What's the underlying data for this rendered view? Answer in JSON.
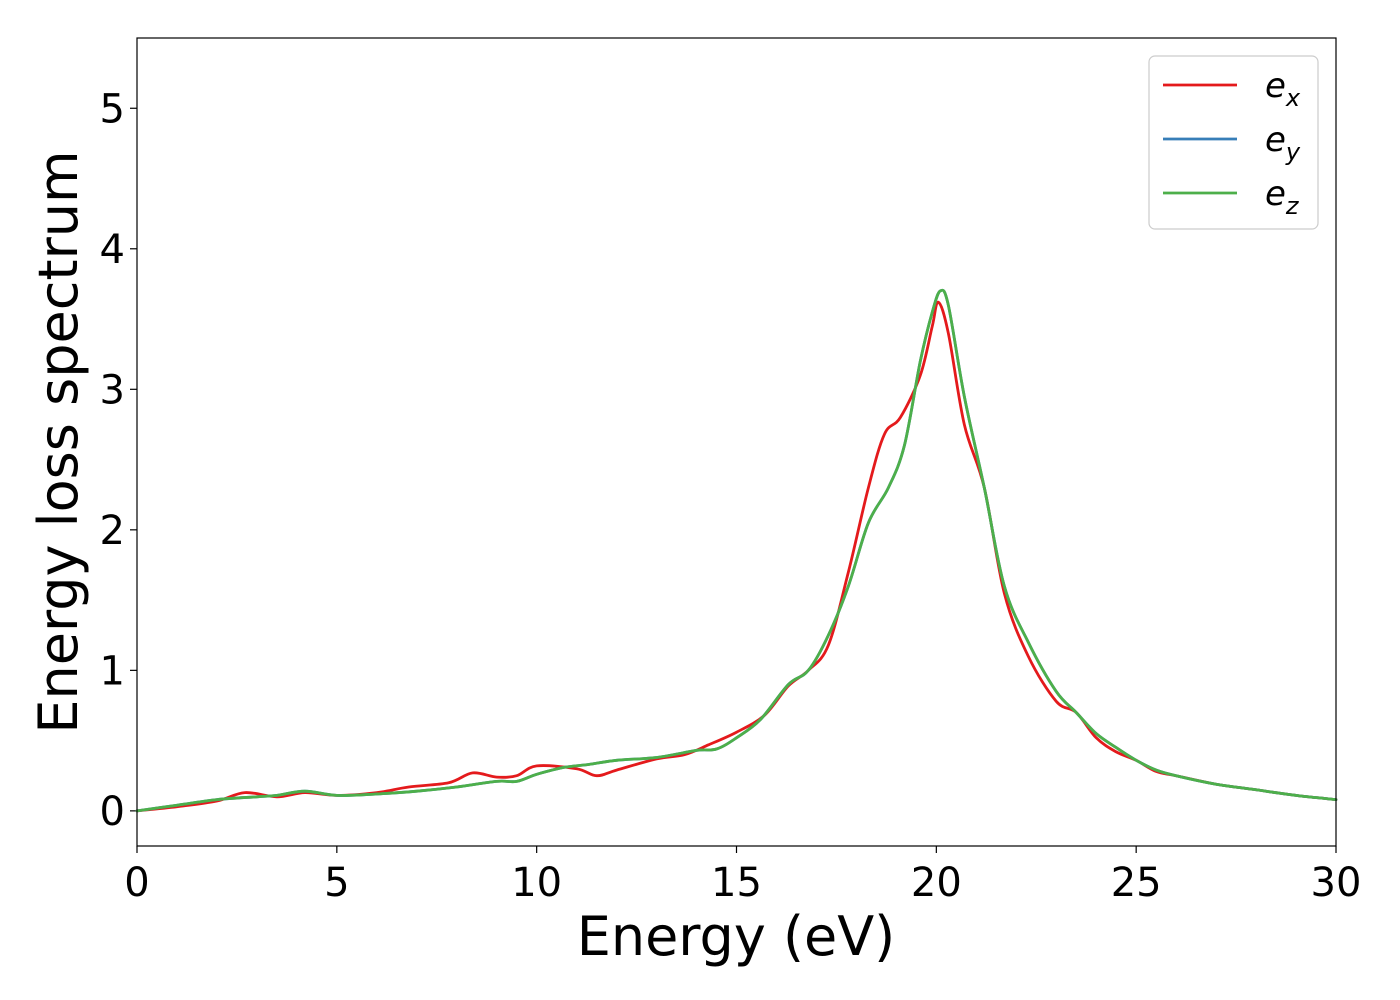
{
  "chart_data": {
    "type": "line",
    "xlabel": "Energy (eV)",
    "ylabel": "Energy loss spectrum",
    "xlim": [
      0,
      30
    ],
    "ylim": [
      -0.25,
      5.5
    ],
    "xticks": [
      0,
      5,
      10,
      15,
      20,
      25,
      30
    ],
    "yticks": [
      0,
      1,
      2,
      3,
      4,
      5
    ],
    "grid": false,
    "legend_position": "top-right",
    "series": [
      {
        "name": "e",
        "subscript": "x",
        "color": "#e41a1c",
        "points": [
          [
            0,
            0
          ],
          [
            1,
            0.03
          ],
          [
            2,
            0.07
          ],
          [
            2.7,
            0.13
          ],
          [
            3.5,
            0.1
          ],
          [
            4.2,
            0.13
          ],
          [
            5,
            0.11
          ],
          [
            6,
            0.13
          ],
          [
            6.8,
            0.17
          ],
          [
            7.8,
            0.2
          ],
          [
            8.4,
            0.27
          ],
          [
            9,
            0.24
          ],
          [
            9.5,
            0.25
          ],
          [
            10,
            0.32
          ],
          [
            11,
            0.3
          ],
          [
            11.5,
            0.25
          ],
          [
            12,
            0.29
          ],
          [
            13,
            0.37
          ],
          [
            13.7,
            0.4
          ],
          [
            14.3,
            0.47
          ],
          [
            15,
            0.56
          ],
          [
            15.7,
            0.68
          ],
          [
            16.3,
            0.89
          ],
          [
            16.8,
            1.0
          ],
          [
            17.3,
            1.18
          ],
          [
            17.8,
            1.7
          ],
          [
            18.3,
            2.3
          ],
          [
            18.7,
            2.68
          ],
          [
            19.1,
            2.8
          ],
          [
            19.6,
            3.1
          ],
          [
            19.9,
            3.45
          ],
          [
            20.05,
            3.62
          ],
          [
            20.3,
            3.4
          ],
          [
            20.7,
            2.75
          ],
          [
            21.2,
            2.3
          ],
          [
            21.7,
            1.55
          ],
          [
            22.3,
            1.1
          ],
          [
            23,
            0.78
          ],
          [
            23.5,
            0.7
          ],
          [
            24,
            0.52
          ],
          [
            24.5,
            0.42
          ],
          [
            25,
            0.36
          ],
          [
            25.5,
            0.28
          ],
          [
            26,
            0.25
          ],
          [
            27,
            0.19
          ],
          [
            28,
            0.15
          ],
          [
            29,
            0.11
          ],
          [
            30,
            0.08
          ]
        ]
      },
      {
        "name": "e",
        "subscript": "y",
        "color": "#377eb8",
        "points": [
          [
            0,
            0
          ],
          [
            1,
            0.04
          ],
          [
            2,
            0.08
          ],
          [
            3,
            0.1
          ],
          [
            3.5,
            0.11
          ],
          [
            4.2,
            0.14
          ],
          [
            5,
            0.11
          ],
          [
            6,
            0.12
          ],
          [
            7,
            0.14
          ],
          [
            8,
            0.17
          ],
          [
            9,
            0.21
          ],
          [
            9.5,
            0.21
          ],
          [
            10,
            0.26
          ],
          [
            10.7,
            0.31
          ],
          [
            11.3,
            0.33
          ],
          [
            12,
            0.36
          ],
          [
            13,
            0.38
          ],
          [
            14,
            0.43
          ],
          [
            14.5,
            0.44
          ],
          [
            15,
            0.52
          ],
          [
            15.6,
            0.65
          ],
          [
            16.3,
            0.9
          ],
          [
            16.8,
            1.0
          ],
          [
            17.3,
            1.25
          ],
          [
            17.8,
            1.6
          ],
          [
            18.3,
            2.05
          ],
          [
            18.8,
            2.3
          ],
          [
            19.2,
            2.6
          ],
          [
            19.6,
            3.2
          ],
          [
            19.9,
            3.55
          ],
          [
            20.1,
            3.7
          ],
          [
            20.3,
            3.6
          ],
          [
            20.7,
            2.95
          ],
          [
            21.2,
            2.3
          ],
          [
            21.7,
            1.6
          ],
          [
            22.3,
            1.2
          ],
          [
            23,
            0.85
          ],
          [
            23.5,
            0.7
          ],
          [
            24,
            0.55
          ],
          [
            24.5,
            0.45
          ],
          [
            25,
            0.36
          ],
          [
            25.5,
            0.29
          ],
          [
            26,
            0.25
          ],
          [
            27,
            0.19
          ],
          [
            28,
            0.15
          ],
          [
            29,
            0.11
          ],
          [
            30,
            0.08
          ]
        ]
      },
      {
        "name": "e",
        "subscript": "z",
        "color": "#4daf4a",
        "points": [
          [
            0,
            0
          ],
          [
            1,
            0.04
          ],
          [
            2,
            0.08
          ],
          [
            3,
            0.1
          ],
          [
            3.5,
            0.11
          ],
          [
            4.2,
            0.14
          ],
          [
            5,
            0.11
          ],
          [
            6,
            0.12
          ],
          [
            7,
            0.14
          ],
          [
            8,
            0.17
          ],
          [
            9,
            0.21
          ],
          [
            9.5,
            0.21
          ],
          [
            10,
            0.26
          ],
          [
            10.7,
            0.31
          ],
          [
            11.3,
            0.33
          ],
          [
            12,
            0.36
          ],
          [
            13,
            0.38
          ],
          [
            14,
            0.43
          ],
          [
            14.5,
            0.44
          ],
          [
            15,
            0.52
          ],
          [
            15.6,
            0.65
          ],
          [
            16.3,
            0.9
          ],
          [
            16.8,
            1.0
          ],
          [
            17.3,
            1.25
          ],
          [
            17.8,
            1.6
          ],
          [
            18.3,
            2.05
          ],
          [
            18.8,
            2.3
          ],
          [
            19.2,
            2.6
          ],
          [
            19.6,
            3.2
          ],
          [
            19.9,
            3.55
          ],
          [
            20.1,
            3.7
          ],
          [
            20.3,
            3.6
          ],
          [
            20.7,
            2.95
          ],
          [
            21.2,
            2.3
          ],
          [
            21.7,
            1.6
          ],
          [
            22.3,
            1.2
          ],
          [
            23,
            0.85
          ],
          [
            23.5,
            0.7
          ],
          [
            24,
            0.55
          ],
          [
            24.5,
            0.45
          ],
          [
            25,
            0.36
          ],
          [
            25.5,
            0.29
          ],
          [
            26,
            0.25
          ],
          [
            27,
            0.19
          ],
          [
            28,
            0.15
          ],
          [
            29,
            0.11
          ],
          [
            30,
            0.08
          ]
        ]
      }
    ]
  }
}
